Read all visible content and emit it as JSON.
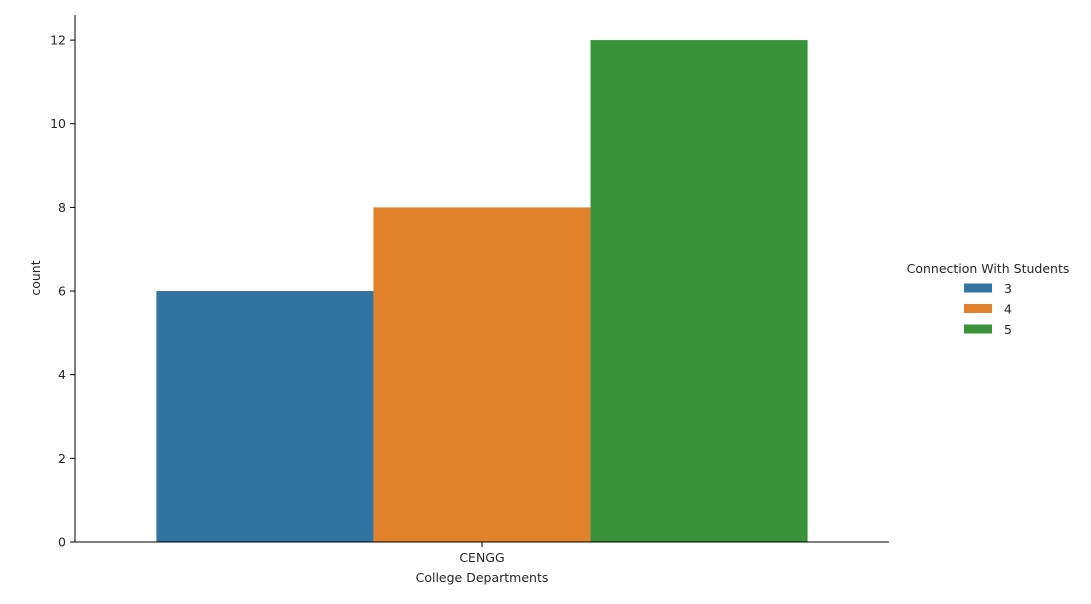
{
  "chart_data": {
    "type": "bar",
    "categories": [
      "CENGG"
    ],
    "series": [
      {
        "name": "3",
        "values": [
          6
        ],
        "color": "#3274a1"
      },
      {
        "name": "4",
        "values": [
          8
        ],
        "color": "#e1812c"
      },
      {
        "name": "5",
        "values": [
          12
        ],
        "color": "#3a923a"
      }
    ],
    "xlabel": "College Departments",
    "ylabel": "count",
    "ylim": [
      0,
      12.6
    ],
    "yticks": [
      0,
      2,
      4,
      6,
      8,
      10,
      12
    ],
    "legend": {
      "title": "Connection With Students",
      "placement": "right"
    },
    "grid": false
  }
}
